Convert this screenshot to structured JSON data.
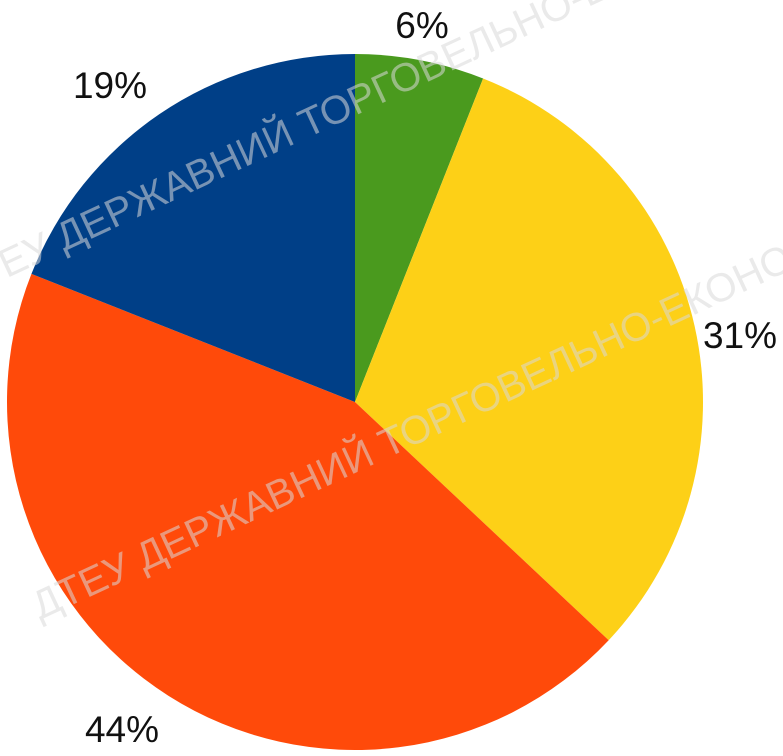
{
  "chart_data": {
    "type": "pie",
    "start_angle_deg": 0,
    "direction": "clockwise",
    "slices": [
      {
        "label": "6%",
        "value": 6,
        "color": "#4a9a1e"
      },
      {
        "label": "31%",
        "value": 31,
        "color": "#fdd017"
      },
      {
        "label": "44%",
        "value": 44,
        "color": "#ff4a0a"
      },
      {
        "label": "19%",
        "value": 19,
        "color": "#003f87"
      }
    ],
    "legend": "none",
    "grid": false
  },
  "watermark": {
    "lines": [
      "ДТЕУ ДЕРЖАВНИЙ ТОРГОВЕЛЬНО-ЕКОНОМІЧНИЙ УНІВЕРСИТЕТ",
      "ДТЕУ ДЕРЖАВНИЙ ТОРГОВЕЛЬНО-ЕКОНОМІЧНИЙ УНІВЕРСИТЕТ"
    ]
  }
}
